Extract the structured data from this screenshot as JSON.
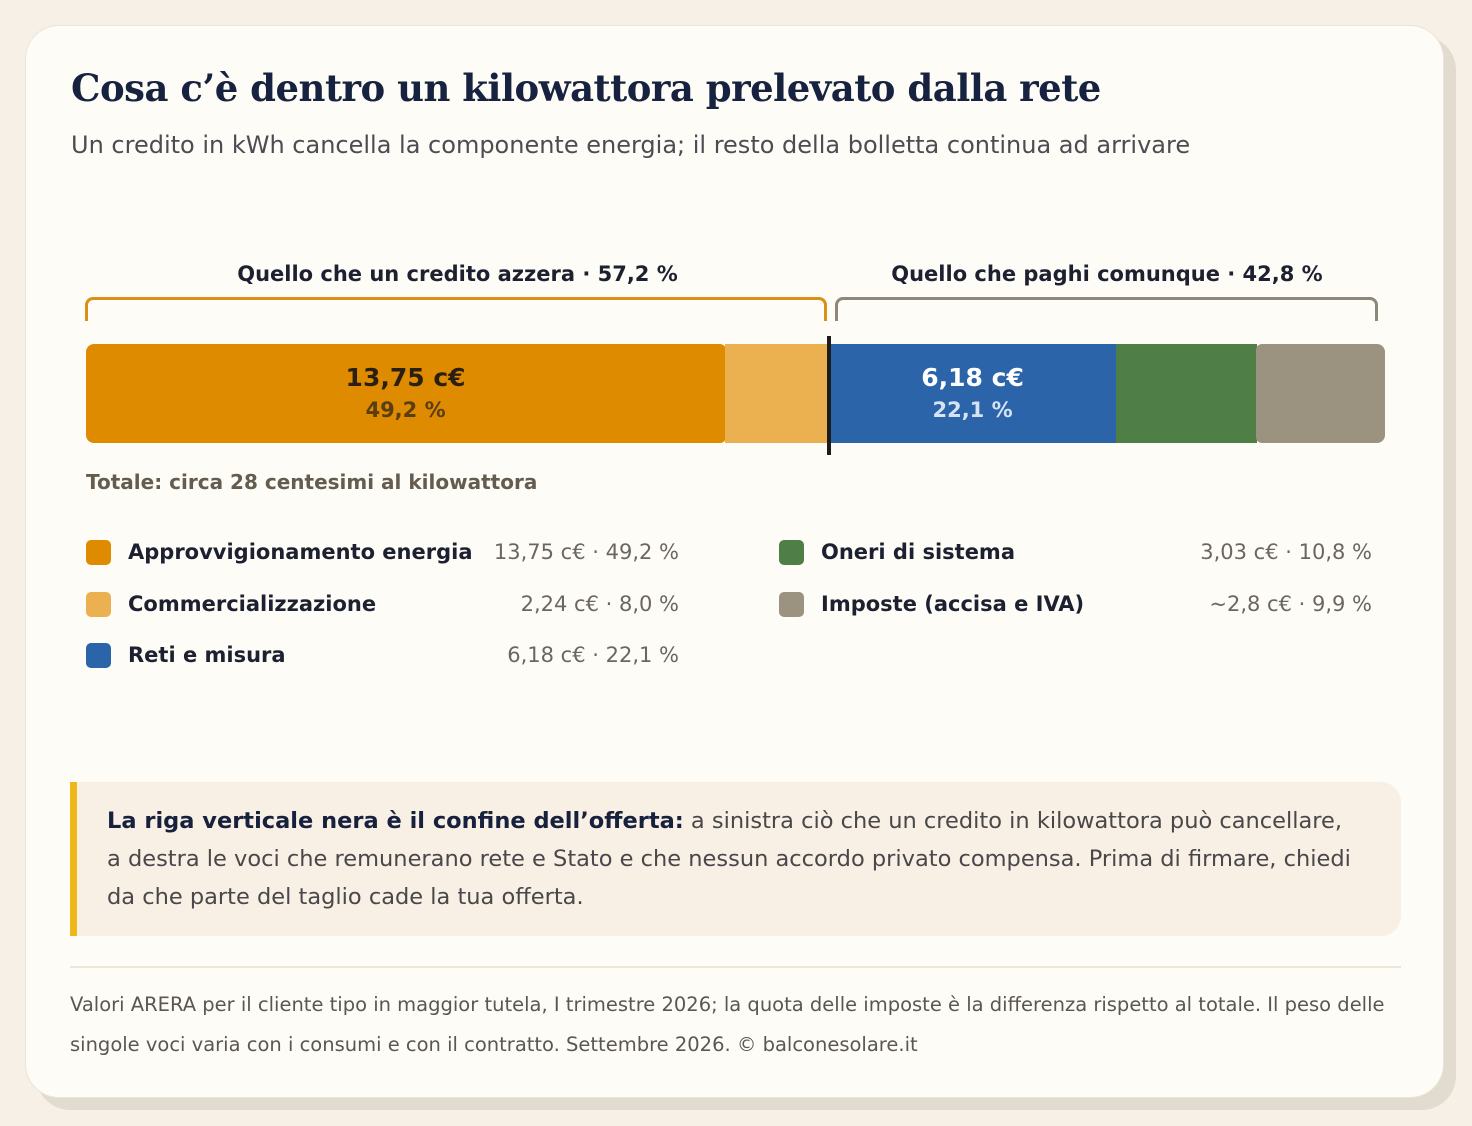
{
  "title": "Cosa c’è dentro un kilowattora prelevato dalla rete",
  "subtitle": "Un credito in kWh cancella la componente energia; il resto della bolletta continua ad arrivare",
  "groups": {
    "left": {
      "label": "Quello che un credito azzera · 57,2 %",
      "color": "#d99015"
    },
    "right": {
      "label": "Quello che paghi comunque · 42,8 %",
      "color": "#8e877b"
    }
  },
  "total_label": "Totale: circa 28 centesimi al kilowattora",
  "chart_data": {
    "type": "bar",
    "orientation": "horizontal-stacked-100",
    "unit": "c€/kWh",
    "total_percent": 100,
    "cut_after_index": 1,
    "segments": [
      {
        "name": "Approvvigionamento energia",
        "value": 13.75,
        "percent": 49.2,
        "color": "#de8b00",
        "value_label": "13,75 c€",
        "percent_label": "49,2 %",
        "legend_value": "13,75 c€ · 49,2 %",
        "text_color": "#2a1f12",
        "pct_color": "#5b3d12"
      },
      {
        "name": "Commercializzazione",
        "value": 2.24,
        "percent": 8.0,
        "color": "#ebb04f",
        "value_label": "",
        "percent_label": "",
        "legend_value": "2,24 c€ · 8,0 %"
      },
      {
        "name": "Reti e misura",
        "value": 6.18,
        "percent": 22.1,
        "color": "#2c64aa",
        "value_label": "6,18 c€",
        "percent_label": "22,1 %",
        "legend_value": "6,18 c€ · 22,1 %",
        "text_color": "#ffffff",
        "pct_color": "#d6e3f4"
      },
      {
        "name": "Oneri di sistema",
        "value": 3.03,
        "percent": 10.8,
        "color": "#4f7e47",
        "value_label": "",
        "percent_label": "",
        "legend_value": "3,03 c€ · 10,8 %"
      },
      {
        "name": "Imposte (accisa e IVA)",
        "value": 2.8,
        "percent": 9.9,
        "color": "#9b937f",
        "value_label": "",
        "percent_label": "",
        "legend_value": "~2,8 c€ · 9,9 %"
      }
    ]
  },
  "note": {
    "lead": "La riga verticale nera è il confine dell’offerta:",
    "body": " a sinistra ciò che un credito in kilowattora può cancellare, a destra le voci che remunerano rete e Stato e che nessun accordo privato compensa. Prima di firmare, chiedi da che parte del taglio cade la tua offerta.",
    "accent": "#f0b71b"
  },
  "footer": "Valori ARERA per il cliente tipo in maggior tutela, I trimestre 2026; la quota delle imposte è la differenza rispetto al totale. Il peso delle singole voci varia con i consumi e con il contratto. Settembre 2026. © balconesolare.it"
}
